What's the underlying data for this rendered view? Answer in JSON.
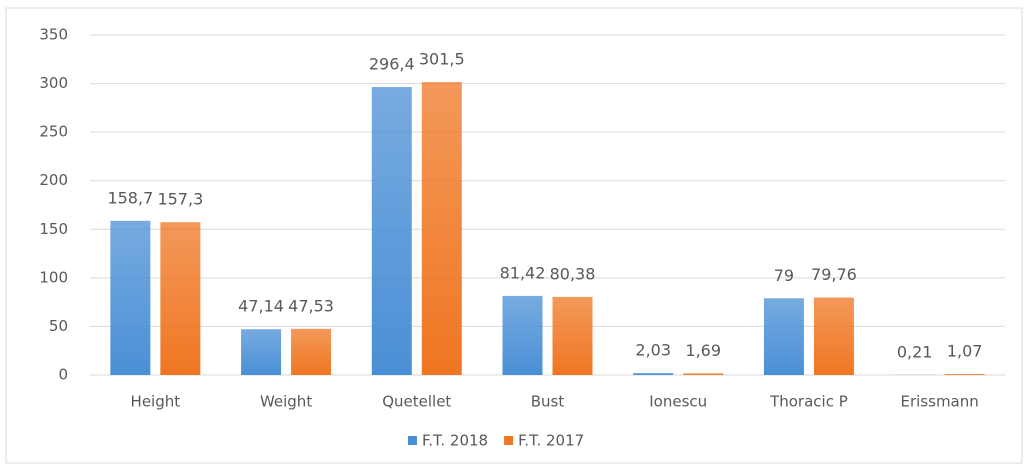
{
  "chart_data": {
    "type": "bar",
    "categories": [
      "Height",
      "Weight",
      "Quetellet",
      "Bust",
      "Ionescu",
      "Thoracic P",
      "Erissmann"
    ],
    "series": [
      {
        "name": "F.T. 2018",
        "color": "#4a8fd6",
        "values": [
          158.7,
          47.14,
          296.4,
          81.42,
          2.03,
          79,
          0.21
        ],
        "value_labels": [
          "158,7",
          "47,14",
          "296,4",
          "81,42",
          "2,03",
          "79",
          "0,21"
        ]
      },
      {
        "name": "F.T. 2017",
        "color": "#ef7622",
        "values": [
          157.3,
          47.53,
          301.5,
          80.38,
          1.69,
          79.76,
          1.07
        ],
        "value_labels": [
          "157,3",
          "47,53",
          "301,5",
          "80,38",
          "1,69",
          "79,76",
          "1,07"
        ]
      }
    ],
    "ylim": [
      0,
      350
    ],
    "yticks": [
      0,
      50,
      100,
      150,
      200,
      250,
      300,
      350
    ],
    "grid": true,
    "legend": "bottom"
  }
}
